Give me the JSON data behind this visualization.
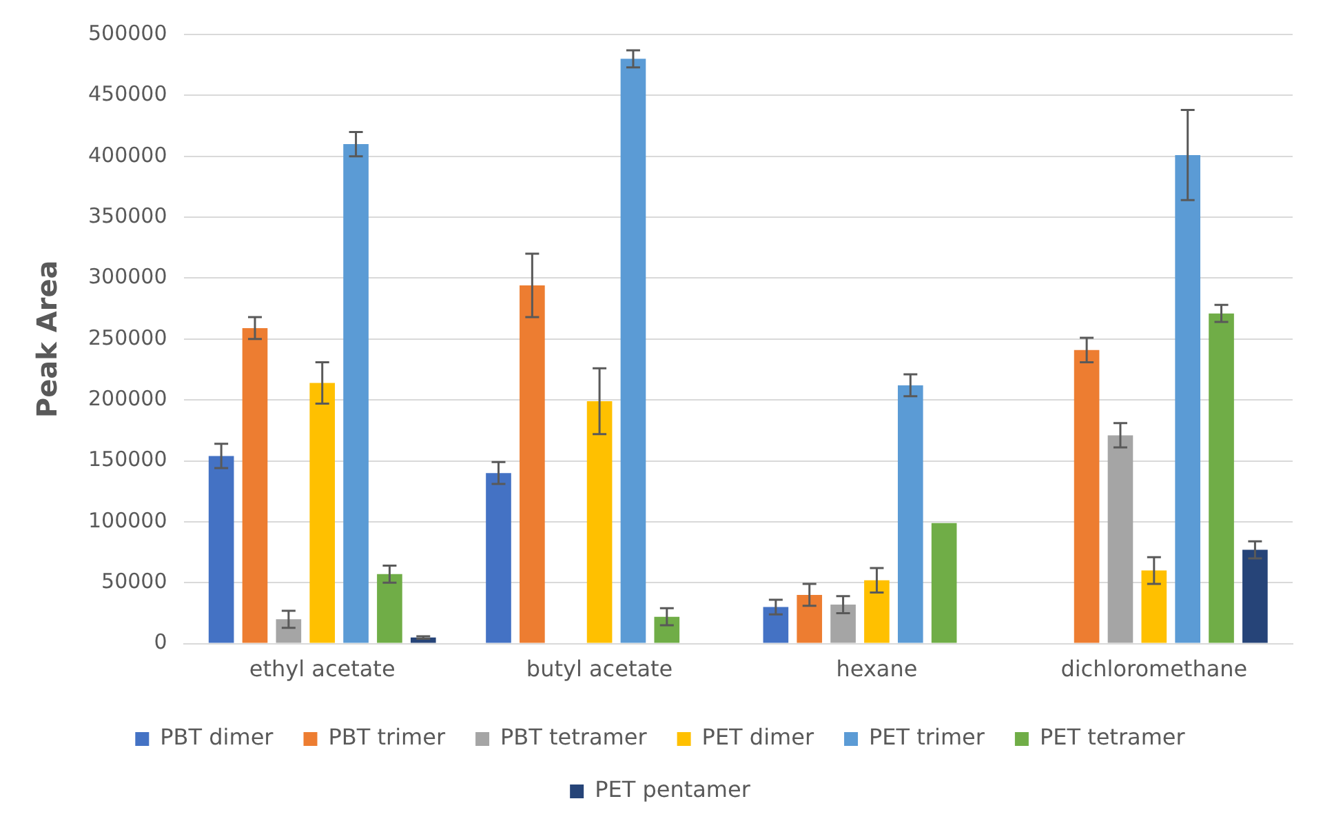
{
  "chart_data": {
    "type": "bar",
    "ylabel": "Peak Area",
    "categories": [
      "ethyl acetate",
      "butyl acetate",
      "hexane",
      "dichloromethane"
    ],
    "series": [
      {
        "name": "PBT dimer",
        "color": "#4472c4",
        "values": [
          154000,
          140000,
          30000,
          null
        ],
        "errors": [
          10000,
          9000,
          6000,
          null
        ]
      },
      {
        "name": "PBT trimer",
        "color": "#ed7d31",
        "values": [
          259000,
          294000,
          40000,
          241000
        ],
        "errors": [
          9000,
          26000,
          9000,
          10000
        ]
      },
      {
        "name": "PBT tetramer",
        "color": "#a5a5a5",
        "values": [
          20000,
          null,
          32000,
          171000
        ],
        "errors": [
          7000,
          null,
          7000,
          10000
        ]
      },
      {
        "name": "PET dimer",
        "color": "#ffc000",
        "values": [
          214000,
          199000,
          52000,
          60000
        ],
        "errors": [
          17000,
          27000,
          10000,
          11000
        ]
      },
      {
        "name": "PET trimer",
        "color": "#5b9bd5",
        "values": [
          410000,
          480000,
          212000,
          401000
        ],
        "errors": [
          10000,
          7000,
          9000,
          37000
        ]
      },
      {
        "name": "PET tetramer",
        "color": "#70ad47",
        "values": [
          57000,
          22000,
          99000,
          271000
        ],
        "errors": [
          7000,
          7000,
          null,
          7000
        ]
      },
      {
        "name": "PET pentamer",
        "color": "#264478",
        "values": [
          5000,
          null,
          null,
          77000
        ],
        "errors": [
          1000,
          null,
          null,
          7000
        ]
      }
    ],
    "ylim": [
      0,
      500000
    ],
    "yticks": [
      0,
      50000,
      100000,
      150000,
      200000,
      250000,
      300000,
      350000,
      400000,
      450000,
      500000
    ],
    "grid": "y",
    "legend": "bottom"
  }
}
